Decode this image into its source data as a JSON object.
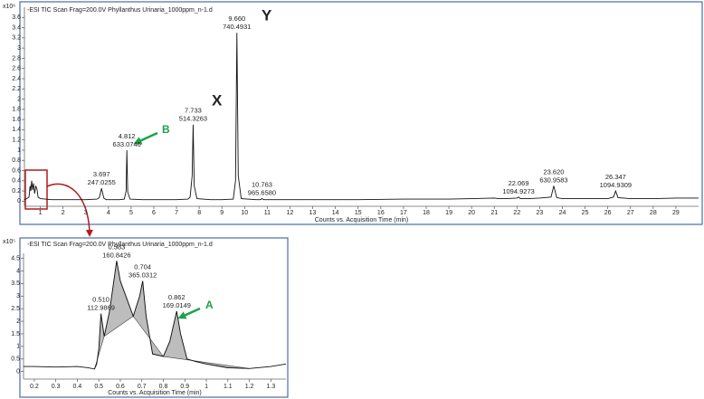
{
  "chart_data": [
    {
      "type": "line",
      "title": "-ESI TIC Scan Frag=200.0V Phyllanthus Urinaria_1000ppm_n-1.d",
      "y_unit": "x10⁶",
      "x_label": "Counts vs. Acquisition Time (min)",
      "color": "#111111",
      "x": [
        0.3,
        0.4,
        0.5,
        0.55,
        0.58,
        0.62,
        0.66,
        0.7,
        0.75,
        0.8,
        0.86,
        0.9,
        1.0,
        1.5,
        2,
        2.5,
        3,
        3.5,
        3.6,
        3.697,
        3.8,
        3.9,
        4.5,
        4.7,
        4.78,
        4.812,
        4.85,
        4.95,
        5.5,
        6,
        6.5,
        7,
        7.5,
        7.6,
        7.69,
        7.733,
        7.78,
        7.9,
        8.5,
        9,
        9.5,
        9.6,
        9.66,
        9.72,
        9.85,
        10.5,
        10.7,
        10.763,
        10.85,
        11.5,
        13,
        15,
        17,
        19,
        20,
        21,
        21.2,
        21.5,
        22,
        22.069,
        22.15,
        22.5,
        23,
        23.5,
        23.62,
        23.75,
        24,
        25,
        26,
        26.25,
        26.347,
        26.45,
        27,
        28,
        29,
        30
      ],
      "values": [
        0.03,
        0.05,
        0.08,
        0.3,
        0.2,
        0.4,
        0.22,
        0.35,
        0.15,
        0.3,
        0.22,
        0.08,
        0.05,
        0.03,
        0.03,
        0.03,
        0.03,
        0.04,
        0.07,
        0.25,
        0.06,
        0.03,
        0.03,
        0.04,
        0.2,
        1.0,
        0.18,
        0.04,
        0.03,
        0.03,
        0.03,
        0.03,
        0.04,
        0.08,
        0.5,
        1.5,
        0.3,
        0.05,
        0.03,
        0.03,
        0.04,
        0.4,
        3.3,
        0.5,
        0.05,
        0.03,
        0.03,
        0.05,
        0.03,
        0.03,
        0.03,
        0.03,
        0.04,
        0.04,
        0.05,
        0.06,
        0.05,
        0.05,
        0.06,
        0.08,
        0.05,
        0.05,
        0.06,
        0.08,
        0.3,
        0.07,
        0.05,
        0.05,
        0.05,
        0.08,
        0.2,
        0.07,
        0.05,
        0.05,
        0.06,
        0.06
      ],
      "xlim": [
        0.3,
        30
      ],
      "xticks": [
        1,
        2,
        3,
        4,
        5,
        6,
        7,
        8,
        9,
        10,
        11,
        12,
        13,
        14,
        15,
        16,
        17,
        18,
        19,
        20,
        21,
        22,
        23,
        24,
        25,
        26,
        27,
        28,
        29
      ],
      "ylim": [
        -0.1,
        3.8
      ],
      "yticks": [
        0,
        0.2,
        0.4,
        0.6,
        0.8,
        1,
        1.2,
        1.4,
        1.6,
        1.8,
        2,
        2.2,
        2.4,
        2.6,
        2.8,
        3,
        3.2,
        3.4,
        3.6
      ],
      "annotations": [
        {
          "rt": "3.697",
          "mz": "247.0255"
        },
        {
          "rt": "4.812",
          "mz": "633.0746"
        },
        {
          "rt": "7.733",
          "mz": "514.3263"
        },
        {
          "rt": "9.660",
          "mz": "740.4931"
        },
        {
          "rt": "10.763",
          "mz": "965.6580"
        },
        {
          "rt": "22.069",
          "mz": "1094.9273"
        },
        {
          "rt": "23.620",
          "mz": "630.9583"
        },
        {
          "rt": "26.347",
          "mz": "1094.9309"
        }
      ],
      "callouts": [
        "X",
        "Y",
        "B"
      ]
    },
    {
      "type": "line",
      "title": "-ESI TIC Scan Frag=200.0V Phyllanthus Urinaria_1000ppm_n-1.d",
      "y_unit": "x10⁵",
      "x_label": "Counts vs. Acquisition Time (min)",
      "color": "#111111",
      "shade": "#bdbdbd",
      "x": [
        0.15,
        0.2,
        0.3,
        0.4,
        0.45,
        0.48,
        0.49,
        0.5,
        0.51,
        0.525,
        0.55,
        0.583,
        0.6,
        0.63,
        0.66,
        0.69,
        0.704,
        0.72,
        0.75,
        0.8,
        0.83,
        0.862,
        0.88,
        0.91,
        0.95,
        1.0,
        1.1,
        1.2,
        1.3,
        1.37
      ],
      "values": [
        0.2,
        0.2,
        0.18,
        0.2,
        0.15,
        0.1,
        0.3,
        0.9,
        2.3,
        1.4,
        2.4,
        4.4,
        3.6,
        2.9,
        2.2,
        3.0,
        3.6,
        2.2,
        0.7,
        0.6,
        1.2,
        2.4,
        1.5,
        0.5,
        0.4,
        0.3,
        0.15,
        0.12,
        0.2,
        0.3
      ],
      "xlim": [
        0.15,
        1.37
      ],
      "xticks": [
        0.2,
        0.3,
        0.4,
        0.5,
        0.6,
        0.7,
        0.8,
        0.9,
        1,
        1.1,
        1.2,
        1.3
      ],
      "ylim": [
        -0.3,
        4.7
      ],
      "yticks": [
        0,
        0.5,
        1,
        1.5,
        2,
        2.5,
        3,
        3.5,
        4,
        4.5
      ],
      "annotations": [
        {
          "rt": "0.510",
          "mz": "112.9869"
        },
        {
          "rt": "0.583",
          "mz": "160.8426"
        },
        {
          "rt": "0.704",
          "mz": "365.0312"
        },
        {
          "rt": "0.862",
          "mz": "169.0149"
        }
      ],
      "callouts": [
        "A"
      ]
    }
  ]
}
